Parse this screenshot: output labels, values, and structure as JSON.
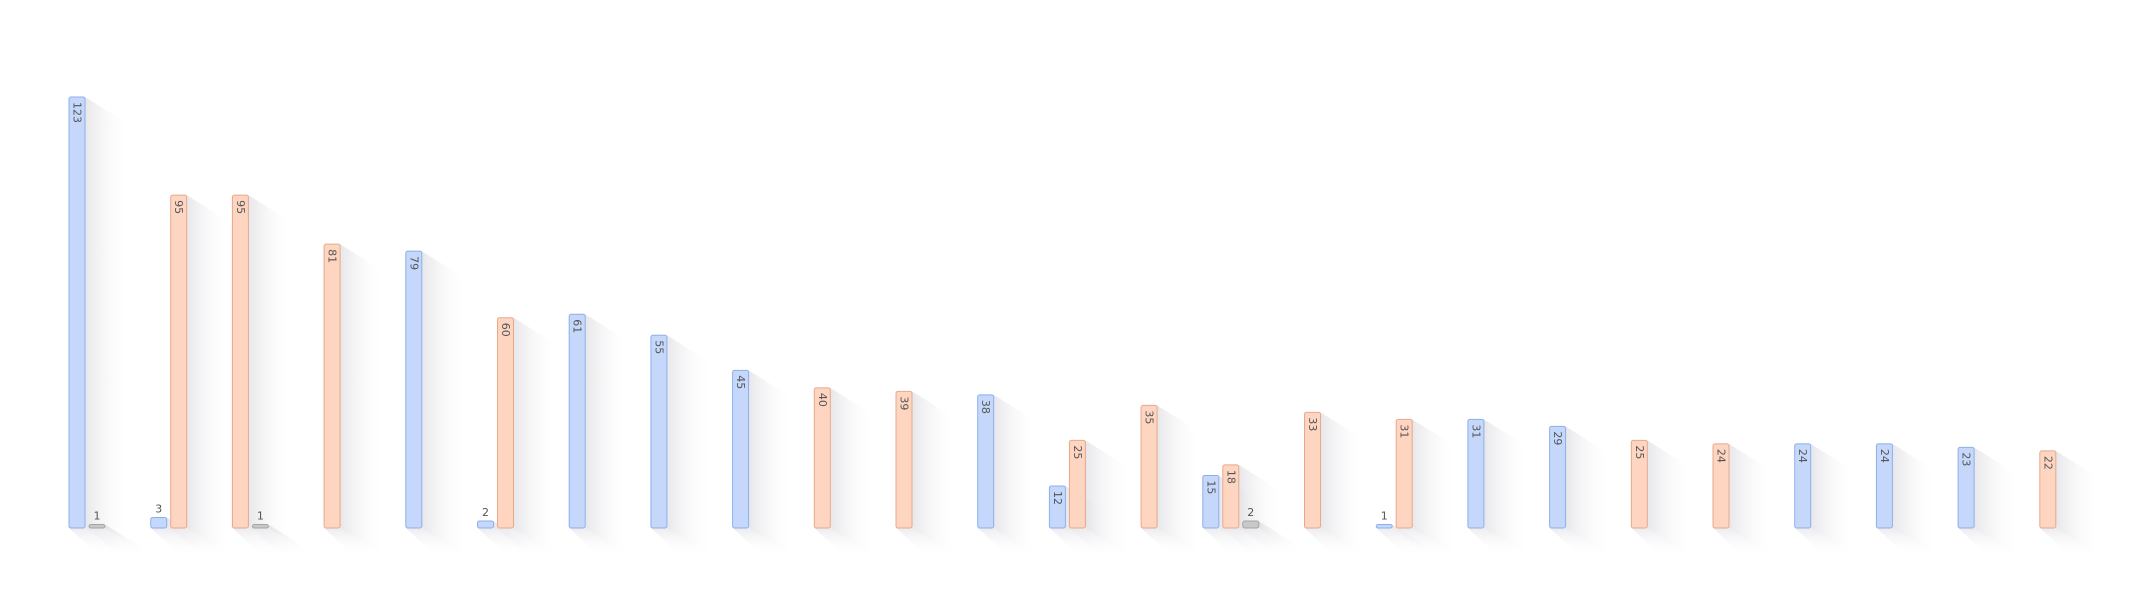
{
  "chart_data": {
    "type": "bar",
    "title": "",
    "xlabel": "",
    "ylabel": "",
    "ylim": [
      0,
      135
    ],
    "grid": false,
    "legend": "none",
    "groups": [
      {
        "bars": [
          {
            "s": 0,
            "v": 123
          },
          {
            "s": 2,
            "v": 1
          }
        ]
      },
      {
        "bars": [
          {
            "s": 0,
            "v": 3
          },
          {
            "s": 1,
            "v": 95
          }
        ]
      },
      {
        "bars": [
          {
            "s": 1,
            "v": 95
          },
          {
            "s": 2,
            "v": 1
          }
        ]
      },
      {
        "bars": [
          {
            "s": 1,
            "v": 81
          }
        ]
      },
      {
        "bars": [
          {
            "s": 0,
            "v": 79
          }
        ]
      },
      {
        "bars": [
          {
            "s": 0,
            "v": 2
          },
          {
            "s": 1,
            "v": 60
          }
        ]
      },
      {
        "bars": [
          {
            "s": 0,
            "v": 61
          }
        ]
      },
      {
        "bars": [
          {
            "s": 0,
            "v": 55
          }
        ]
      },
      {
        "bars": [
          {
            "s": 0,
            "v": 45
          }
        ]
      },
      {
        "bars": [
          {
            "s": 1,
            "v": 40
          }
        ]
      },
      {
        "bars": [
          {
            "s": 1,
            "v": 39
          }
        ]
      },
      {
        "bars": [
          {
            "s": 0,
            "v": 38
          }
        ]
      },
      {
        "bars": [
          {
            "s": 0,
            "v": 12
          },
          {
            "s": 1,
            "v": 25
          }
        ]
      },
      {
        "bars": [
          {
            "s": 1,
            "v": 35
          }
        ]
      },
      {
        "bars": [
          {
            "s": 0,
            "v": 15
          },
          {
            "s": 1,
            "v": 18
          },
          {
            "s": 2,
            "v": 2
          }
        ]
      },
      {
        "bars": [
          {
            "s": 1,
            "v": 33
          }
        ]
      },
      {
        "bars": [
          {
            "s": 0,
            "v": 1
          },
          {
            "s": 1,
            "v": 31
          }
        ]
      },
      {
        "bars": [
          {
            "s": 0,
            "v": 31
          }
        ]
      },
      {
        "bars": [
          {
            "s": 0,
            "v": 29
          }
        ]
      },
      {
        "bars": [
          {
            "s": 1,
            "v": 25
          }
        ]
      },
      {
        "bars": [
          {
            "s": 1,
            "v": 24
          }
        ]
      },
      {
        "bars": [
          {
            "s": 0,
            "v": 24
          }
        ]
      },
      {
        "bars": [
          {
            "s": 0,
            "v": 24
          }
        ]
      },
      {
        "bars": [
          {
            "s": 0,
            "v": 23
          }
        ]
      },
      {
        "bars": [
          {
            "s": 1,
            "v": 22
          }
        ]
      }
    ],
    "series_colors": [
      {
        "fill": "#c5d8fb",
        "stroke": "#8eaeeb"
      },
      {
        "fill": "#fdd5c0",
        "stroke": "#e8a88a"
      },
      {
        "fill": "#c8c8c8",
        "stroke": "#a5a5a5"
      }
    ]
  }
}
